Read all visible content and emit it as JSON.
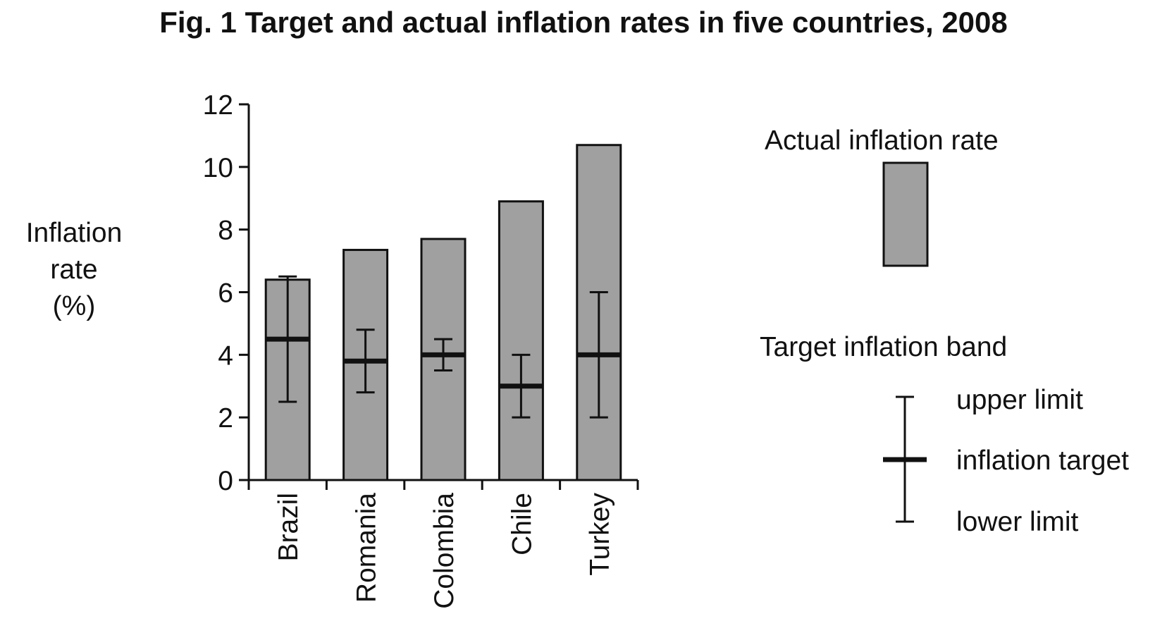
{
  "chart_data": {
    "type": "bar",
    "title": "Fig. 1 Target and actual inflation rates in five countries, 2008",
    "ylabel_lines": [
      "Inflation",
      "rate",
      "(%)"
    ],
    "xlabel": "",
    "ylim": [
      0,
      12
    ],
    "yticks": [
      0,
      2,
      4,
      6,
      8,
      10,
      12
    ],
    "categories": [
      "Brazil",
      "Romania",
      "Colombia",
      "Chile",
      "Turkey"
    ],
    "series": [
      {
        "name": "Actual inflation rate",
        "values": [
          6.4,
          7.35,
          7.7,
          8.9,
          10.7
        ]
      }
    ],
    "target_band": {
      "name": "Target inflation band",
      "target": [
        4.5,
        3.8,
        4.0,
        3.0,
        4.0
      ],
      "upper": [
        6.5,
        4.8,
        4.5,
        4.0,
        6.0
      ],
      "lower": [
        2.5,
        2.8,
        3.5,
        2.0,
        2.0
      ]
    },
    "legend": {
      "actual_label": "Actual inflation rate",
      "band_label": "Target inflation band",
      "upper_label": "upper limit",
      "target_label": "inflation target",
      "lower_label": "lower limit"
    },
    "colors": {
      "bar_fill": "#a0a0a0",
      "stroke": "#111111"
    }
  }
}
